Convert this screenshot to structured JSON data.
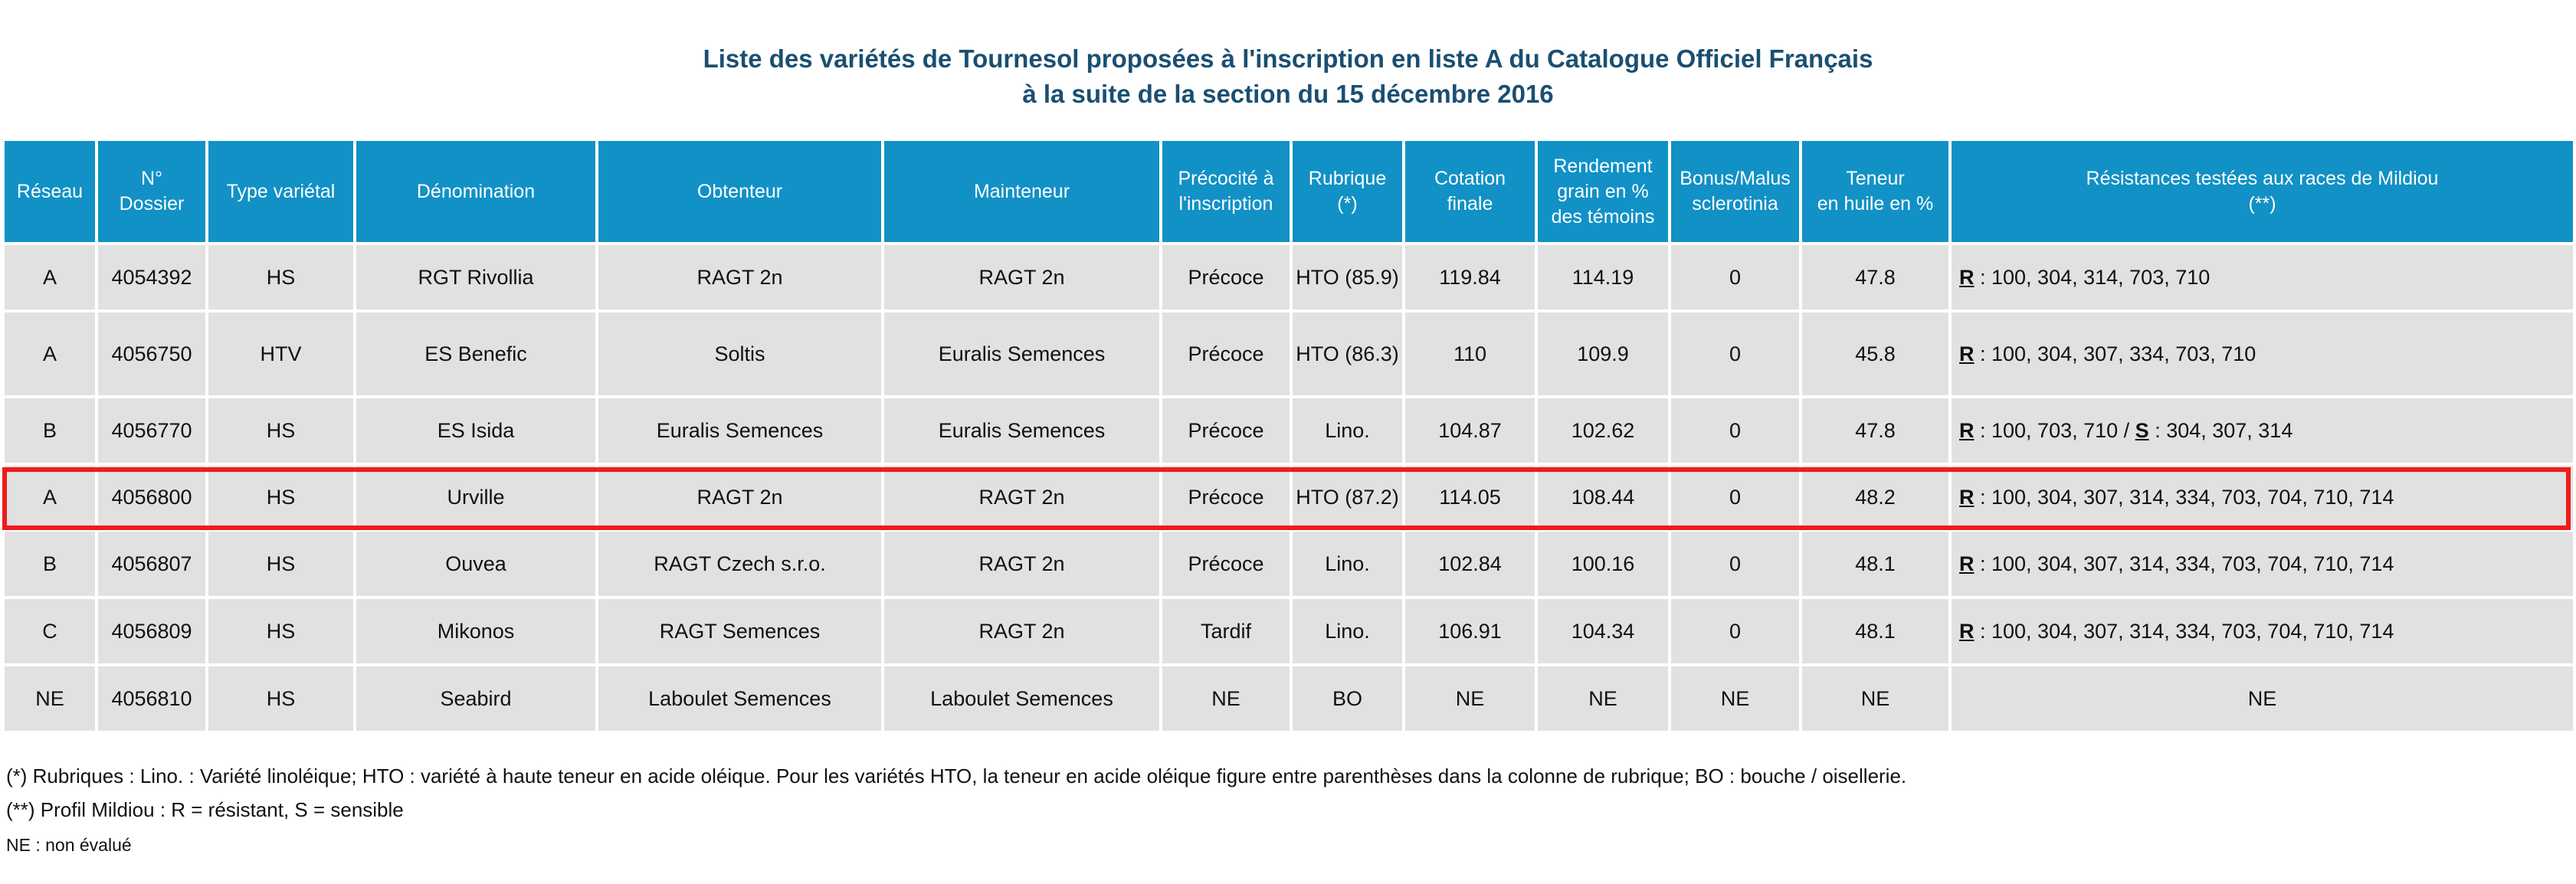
{
  "title": {
    "line1": "Liste des variétés de Tournesol proposées à l'inscription en liste A du Catalogue Officiel Français",
    "line2": "à la suite de la section du 15 décembre 2016"
  },
  "colors": {
    "header_bg": "#1191c6",
    "header_text": "#ffffff",
    "row_bg": "#e1e1e1",
    "title": "#1a4f72",
    "highlight_border": "#ee1c1c"
  },
  "table": {
    "headers": [
      "Réseau",
      "N°\nDossier",
      "Type variétal",
      "Dénomination",
      "Obtenteur",
      "Mainteneur",
      "Précocité à\nl'inscription",
      "Rubrique\n(*)",
      "Cotation\nfinale",
      "Rendement\ngrain en %\ndes témoins",
      "Bonus/Malus\nsclerotinia",
      "Teneur\nen huile en %",
      "Résistances testées aux races de Mildiou\n(**)"
    ],
    "rows": [
      {
        "reseau": "A",
        "dossier": "4054392",
        "type": "HS",
        "denomination": "RGT Rivollia",
        "obtenteur": "RAGT 2n",
        "mainteneur": "RAGT 2n",
        "precocite": "Précoce",
        "rubrique": "HTO (85.9)",
        "cotation": "119.84",
        "rendement": "114.19",
        "bonus": "0",
        "teneur": "47.8",
        "res_r_label": "R",
        "res_r_values": " : 100, 304, 314, 703, 710",
        "res_s_sep": "",
        "res_s_label": "",
        "res_s_values": ""
      },
      {
        "reseau": "A",
        "dossier": "4056750",
        "type": "HTV",
        "denomination": "ES Benefic",
        "obtenteur": "Soltis",
        "mainteneur": "Euralis Semences",
        "precocite": "Précoce",
        "rubrique": "HTO (86.3)",
        "cotation": "110",
        "rendement": "109.9",
        "bonus": "0",
        "teneur": "45.8",
        "res_r_label": "R",
        "res_r_values": " : 100, 304, 307, 334, 703, 710",
        "res_s_sep": "",
        "res_s_label": "",
        "res_s_values": ""
      },
      {
        "reseau": "B",
        "dossier": "4056770",
        "type": "HS",
        "denomination": "ES Isida",
        "obtenteur": "Euralis Semences",
        "mainteneur": "Euralis Semences",
        "precocite": "Précoce",
        "rubrique": "Lino.",
        "cotation": "104.87",
        "rendement": "102.62",
        "bonus": "0",
        "teneur": "47.8",
        "res_r_label": "R",
        "res_r_values": " : 100, 703, 710",
        "res_s_sep": " / ",
        "res_s_label": "S",
        "res_s_values": " : 304, 307, 314"
      },
      {
        "reseau": "A",
        "dossier": "4056800",
        "type": "HS",
        "denomination": "Urville",
        "obtenteur": "RAGT 2n",
        "mainteneur": "RAGT 2n",
        "precocite": "Précoce",
        "rubrique": "HTO (87.2)",
        "cotation": "114.05",
        "rendement": "108.44",
        "bonus": "0",
        "teneur": "48.2",
        "res_r_label": "R",
        "res_r_values": " : 100, 304, 307, 314, 334, 703, 704, 710, 714",
        "res_s_sep": "",
        "res_s_label": "",
        "res_s_values": ""
      },
      {
        "reseau": "B",
        "dossier": "4056807",
        "type": "HS",
        "denomination": "Ouvea",
        "obtenteur": "RAGT Czech s.r.o.",
        "mainteneur": "RAGT 2n",
        "precocite": "Précoce",
        "rubrique": "Lino.",
        "cotation": "102.84",
        "rendement": "100.16",
        "bonus": "0",
        "teneur": "48.1",
        "res_r_label": "R",
        "res_r_values": " : 100, 304, 307, 314, 334, 703, 704, 710, 714",
        "res_s_sep": "",
        "res_s_label": "",
        "res_s_values": ""
      },
      {
        "reseau": "C",
        "dossier": "4056809",
        "type": "HS",
        "denomination": "Mikonos",
        "obtenteur": "RAGT Semences",
        "mainteneur": "RAGT 2n",
        "precocite": "Tardif",
        "rubrique": "Lino.",
        "cotation": "106.91",
        "rendement": "104.34",
        "bonus": "0",
        "teneur": "48.1",
        "res_r_label": "R",
        "res_r_values": " : 100, 304, 307, 314, 334, 703, 704, 710, 714",
        "res_s_sep": "",
        "res_s_label": "",
        "res_s_values": ""
      },
      {
        "reseau": "NE",
        "dossier": "4056810",
        "type": "HS",
        "denomination": "Seabird",
        "obtenteur": "Laboulet Semences",
        "mainteneur": "Laboulet Semences",
        "precocite": "NE",
        "rubrique": "BO",
        "cotation": "NE",
        "rendement": "NE",
        "bonus": "NE",
        "teneur": "NE",
        "res_plain": "NE"
      }
    ]
  },
  "notes": {
    "rubriques": "(*) Rubriques : Lino. : Variété linoléique; HTO : variété à haute teneur en acide oléique. Pour les variétés HTO, la teneur en acide oléique figure entre parenthèses dans la colonne de rubrique; BO : bouche / oisellerie.",
    "mildiou": "(**) Profil Mildiou : R = résistant, S = sensible",
    "ne": "NE : non évalué"
  }
}
